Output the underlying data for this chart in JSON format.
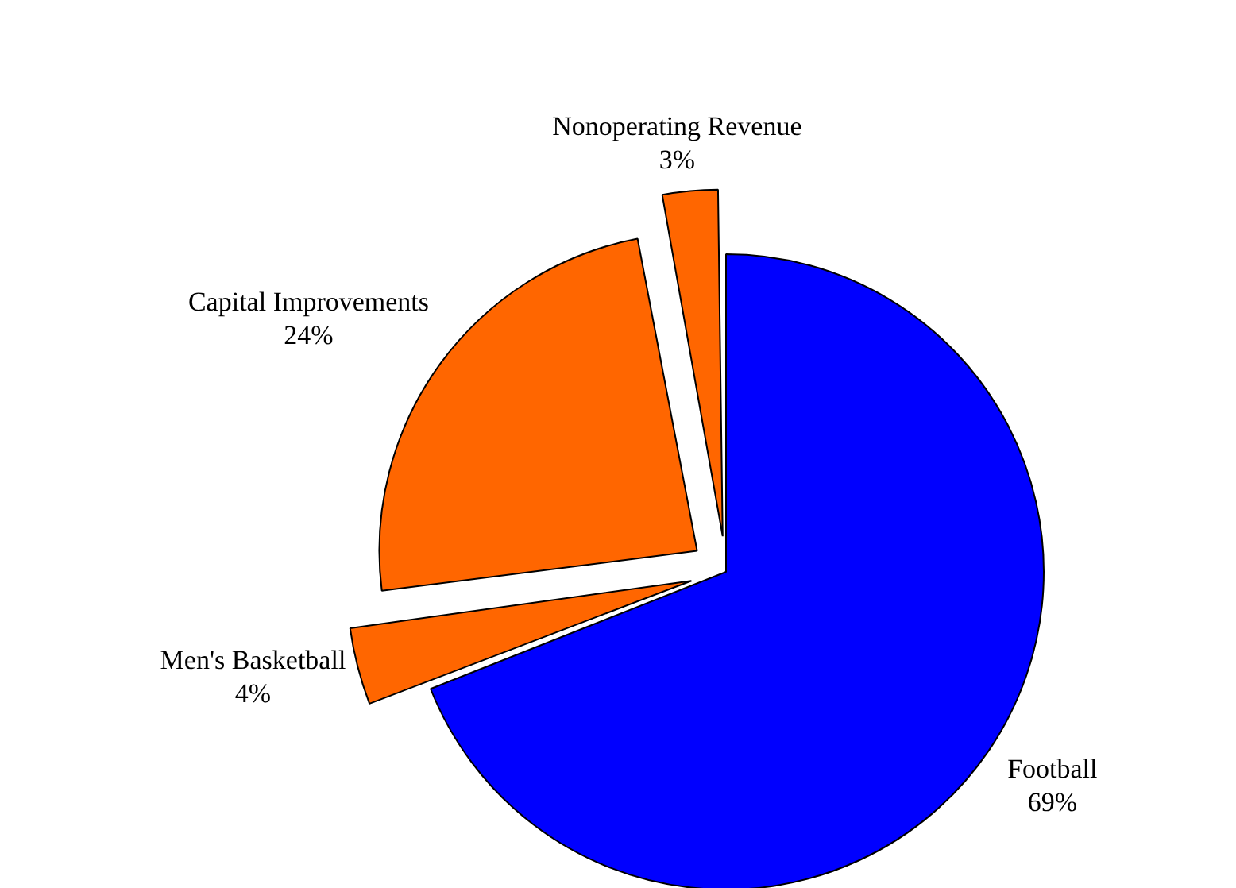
{
  "chart_data": {
    "type": "pie",
    "categories": [
      "Football",
      "Men's Basketball",
      "Capital Improvements",
      "Nonoperating Revenue"
    ],
    "values": [
      69,
      4,
      24,
      3
    ],
    "colors": [
      "#0000ff",
      "#ff6600",
      "#ff6600",
      "#ff6600"
    ],
    "value_labels": [
      "69%",
      "4%",
      "24%",
      "3%"
    ],
    "legend": false
  }
}
